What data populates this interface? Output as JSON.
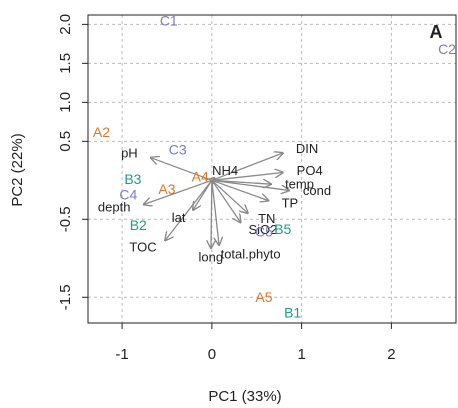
{
  "chart_data": {
    "type": "scatter",
    "title": "A",
    "x_label": "PC1 (33%)",
    "y_label": "PC2 (22%)",
    "xlim": [
      -1.38,
      2.72
    ],
    "ylim": [
      -1.83,
      2.12
    ],
    "xticks": [
      -1,
      0,
      1,
      2
    ],
    "yticks": [
      {
        "value": 2,
        "label": "2.0"
      },
      {
        "value": 1.5,
        "label": "1.5"
      },
      {
        "value": 1,
        "label": "1.0"
      },
      {
        "value": 0.5,
        "label": "0.5"
      },
      {
        "value": -0.5,
        "label": "-0.5"
      },
      {
        "value": -1.5,
        "label": "-1.5"
      }
    ],
    "grid": true,
    "arrow_color": "#8a8a8a",
    "points": [
      {
        "label": "C1",
        "x": -0.48,
        "y": 2.03,
        "color": "#7b7bc8"
      },
      {
        "label": "C2",
        "x": 2.62,
        "y": 1.67,
        "color": "#7b7bc8"
      },
      {
        "label": "A2",
        "x": -1.23,
        "y": 0.6,
        "color": "#d9782d"
      },
      {
        "label": "C3",
        "x": -0.38,
        "y": 0.38,
        "color": "#7b7bc8"
      },
      {
        "label": "A4",
        "x": -0.13,
        "y": 0.03,
        "color": "#d9782d"
      },
      {
        "label": "B3",
        "x": -0.88,
        "y": 0.0,
        "color": "#1f9a8a"
      },
      {
        "label": "A3",
        "x": -0.5,
        "y": -0.13,
        "color": "#d9782d"
      },
      {
        "label": "C4",
        "x": -0.93,
        "y": -0.2,
        "color": "#7b7bc8"
      },
      {
        "label": "B2",
        "x": -0.82,
        "y": -0.59,
        "color": "#1f9a8a"
      },
      {
        "label": "C5",
        "x": 0.58,
        "y": -0.67,
        "color": "#7b7bc8"
      },
      {
        "label": "B5",
        "x": 0.79,
        "y": -0.64,
        "color": "#1f9a8a"
      },
      {
        "label": "A5",
        "x": 0.58,
        "y": -1.51,
        "color": "#d9782d"
      },
      {
        "label": "B1",
        "x": 0.9,
        "y": -1.71,
        "color": "#1f9a8a"
      }
    ],
    "loadings": [
      {
        "label": "pH",
        "x": -0.68,
        "y": 0.29
      },
      {
        "label": "DIN",
        "x": 0.79,
        "y": 0.35
      },
      {
        "label": "PO4",
        "x": 0.79,
        "y": 0.1
      },
      {
        "label": "cond",
        "x": 0.86,
        "y": -0.13
      },
      {
        "label": "temp",
        "x": 0.66,
        "y": -0.05
      },
      {
        "label": "TP",
        "x": 0.63,
        "y": -0.26
      },
      {
        "label": "TN",
        "x": 0.4,
        "y": -0.42
      },
      {
        "label": "SiO2",
        "x": 0.32,
        "y": -0.54
      },
      {
        "label": "total.phyto",
        "x": 0.08,
        "y": -0.83
      },
      {
        "label": "long",
        "x": -0.01,
        "y": -0.87
      },
      {
        "label": "TOC",
        "x": -0.52,
        "y": -0.77
      },
      {
        "label": "lat",
        "x": -0.21,
        "y": -0.38
      },
      {
        "label": "depth",
        "x": -0.76,
        "y": -0.31
      },
      {
        "label": "NH4",
        "x": 0.03,
        "y": 0.03
      }
    ]
  }
}
